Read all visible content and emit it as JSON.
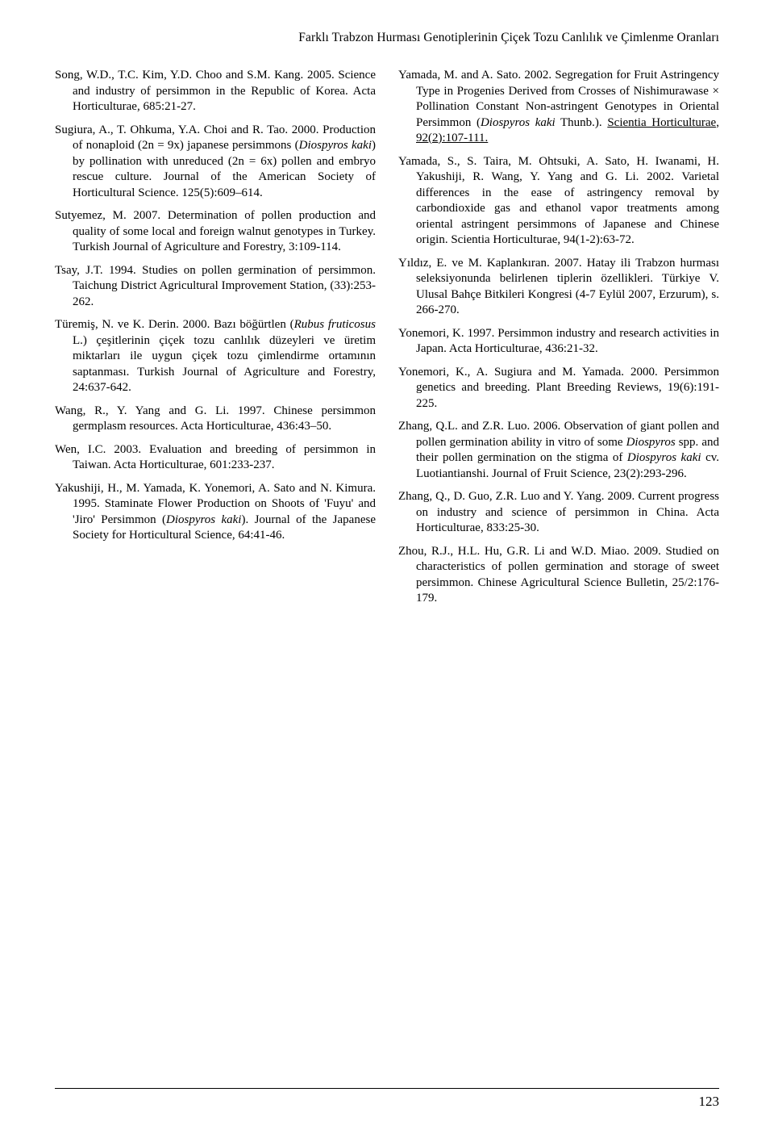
{
  "runningHead": "Farklı Trabzon Hurması Genotiplerinin Çiçek Tozu Canlılık ve Çimlenme Oranları",
  "pageNumber": "123",
  "refs": [
    "Song, W.D., T.C. Kim, Y.D. Choo and S.M. Kang. 2005. Science and industry of persimmon in the Republic of Korea. Acta Horticulturae, 685:21-27.",
    "Sugiura, A., T. Ohkuma, Y.A. Choi and R. Tao. 2000. Production of nonaploid (2n = 9x) japanese persimmons (<em>Diospyros kaki</em>) by pollination with unreduced (2n = 6x) pollen and embryo rescue culture. Journal of the American Society of Horticultural Science. 125(5):609–614.",
    "Sutyemez, M. 2007. Determination of pollen production and quality of some local and foreign walnut genotypes in Turkey. Turkish Journal of Agriculture and Forestry, 3:109-114.",
    "Tsay, J.T. 1994. Studies on pollen germination of persimmon. Taichung District Agricultural Improvement Station, (33):253-262.",
    "Türemiş, N. ve K. Derin. 2000. Bazı böğürtlen (<em>Rubus fruticosus</em> L.) çeşitlerinin çiçek tozu canlılık düzeyleri ve üretim miktarları ile uygun çiçek tozu çimlendirme ortamının saptanması. Turkish Journal of Agriculture and Forestry, 24:637-642.",
    "Wang, R., Y. Yang and G. Li. 1997. Chinese persimmon germplasm resources. Acta Horticulturae, 436:43–50.",
    "Wen, I.C. 2003. Evaluation and breeding of persimmon in Taiwan. Acta Horticulturae, 601:233-237.",
    "Yakushiji, H., M. Yamada, K. Yonemori, A. Sato and N. Kimura. 1995. Staminate Flower Production on Shoots of 'Fuyu' and 'Jiro' Persimmon (<em>Diospyros kaki</em>). Journal of the Japanese Society for Horticultural Science, 64:41-46.",
    "Yamada, M. and A. Sato. 2002. Segregation for Fruit Astringency Type in Progenies Derived from Crosses of Nishimurawase × Pollination Constant Non-astringent Genotypes in Oriental Persimmon (<em>Diospyros kaki</em> Thunb.). <u>Scientia Horticulturae, 92(2):107-111.</u>",
    "Yamada, S., S. Taira, M. Ohtsuki, A. Sato, H. Iwanami, H. Yakushiji, R. Wang, Y. Yang and G. Li. 2002. Varietal differences in the ease of astringency removal by carbondioxide gas and ethanol vapor treatments among oriental astringent persimmons of Japanese and Chinese origin. Scientia Horticulturae, 94(1-2):63-72.",
    "Yıldız, E. ve M. Kaplankıran. 2007. Hatay ili Trabzon hurması seleksiyonunda belirlenen tiplerin özellikleri. Türkiye V. Ulusal Bahçe Bitkileri Kongresi (4-7 Eylül 2007, Erzurum), s. 266-270.",
    "Yonemori, K. 1997. Persimmon industry and research activities in Japan. Acta Horticulturae, 436:21-32.",
    "Yonemori, K., A. Sugiura and M. Yamada. 2000. Persimmon genetics and breeding. Plant Breeding Reviews, 19(6):191-225.",
    "Zhang, Q.L. and Z.R. Luo. 2006. Observation of giant pollen and pollen germination ability in vitro of some <em>Diospyros</em> spp. and their pollen germination on the stigma of <em>Diospyros kaki</em> cv. Luotiantianshi. Journal of Fruit Science, 23(2):293-296.",
    "Zhang, Q., D. Guo, Z.R. Luo and Y. Yang. 2009. Current progress on industry and science of persimmon in China. Acta Horticulturae, 833:25-30.",
    "Zhou, R.J., H.L. Hu, G.R. Li and W.D. Miao. 2009. Studied on characteristics of pollen germination and storage of sweet persimmon. Chinese Agricultural Science Bulletin, 25/2:176-179."
  ]
}
